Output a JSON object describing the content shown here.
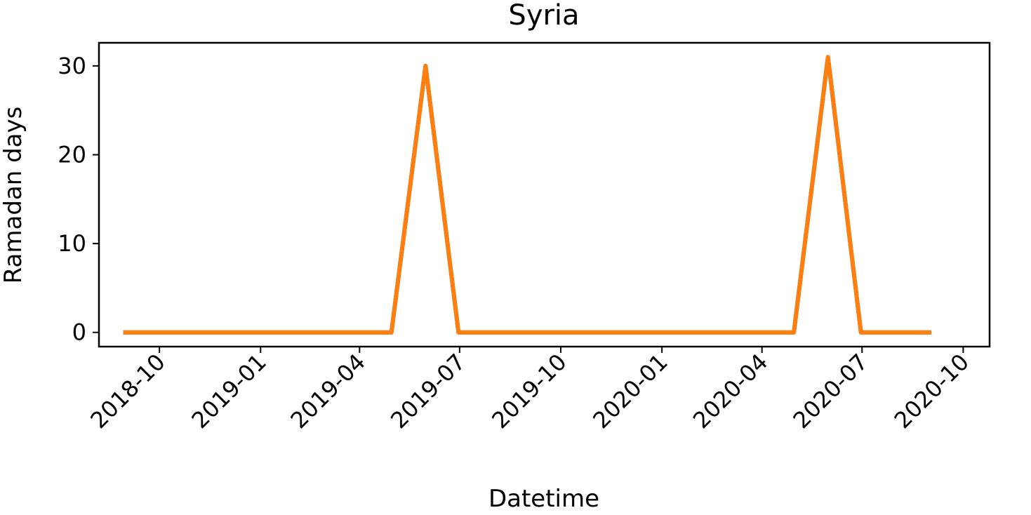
{
  "chart_data": {
    "type": "line",
    "title": "Syria",
    "xlabel": "Datetime",
    "ylabel": "Ramadan days",
    "x_axis": {
      "type": "date",
      "range": [
        "2018-08-07",
        "2020-10-25"
      ],
      "ticks": [
        "2018-10-01",
        "2019-01-01",
        "2019-04-01",
        "2019-07-01",
        "2019-10-01",
        "2020-01-01",
        "2020-04-01",
        "2020-07-01",
        "2020-10-01"
      ],
      "tick_labels": [
        "2018-10",
        "2019-01",
        "2019-04",
        "2019-07",
        "2019-10",
        "2020-01",
        "2020-04",
        "2020-07",
        "2020-10"
      ]
    },
    "y_axis": {
      "range": [
        -1.6,
        32.6
      ],
      "ticks": [
        0,
        10,
        20,
        30
      ],
      "tick_labels": [
        "0",
        "10",
        "20",
        "30"
      ]
    },
    "grid": false,
    "legend": "none",
    "series": [
      {
        "color": "#1f77b4",
        "x": [
          "2018-08-31",
          "2018-09-30",
          "2018-10-31",
          "2018-11-30",
          "2018-12-31",
          "2019-01-31",
          "2019-02-28",
          "2019-03-31",
          "2019-04-30",
          "2019-05-31",
          "2019-06-30",
          "2019-07-31",
          "2019-08-31",
          "2019-09-30",
          "2019-10-31",
          "2019-11-30",
          "2019-12-31",
          "2020-01-31",
          "2020-02-29",
          "2020-03-31",
          "2020-04-30",
          "2020-05-31",
          "2020-06-30",
          "2020-07-31",
          "2020-08-31"
        ],
        "y": [
          0,
          0,
          0,
          0,
          0,
          0,
          0,
          0,
          0,
          30,
          0,
          0,
          0,
          0,
          0,
          0,
          0,
          0,
          0,
          0,
          0,
          31,
          0,
          0,
          0
        ]
      },
      {
        "color": "#ff7f0e",
        "x": [
          "2018-08-31",
          "2018-09-30",
          "2018-10-31",
          "2018-11-30",
          "2018-12-31",
          "2019-01-31",
          "2019-02-28",
          "2019-03-31",
          "2019-04-30",
          "2019-05-31",
          "2019-06-30",
          "2019-07-31",
          "2019-08-31",
          "2019-09-30",
          "2019-10-31",
          "2019-11-30",
          "2019-12-31",
          "2020-01-31",
          "2020-02-29",
          "2020-03-31",
          "2020-04-30",
          "2020-05-31",
          "2020-06-30",
          "2020-07-31",
          "2020-08-31"
        ],
        "y": [
          0,
          0,
          0,
          0,
          0,
          0,
          0,
          0,
          0,
          30,
          0,
          0,
          0,
          0,
          0,
          0,
          0,
          0,
          0,
          0,
          0,
          31,
          0,
          0,
          0
        ]
      }
    ]
  }
}
